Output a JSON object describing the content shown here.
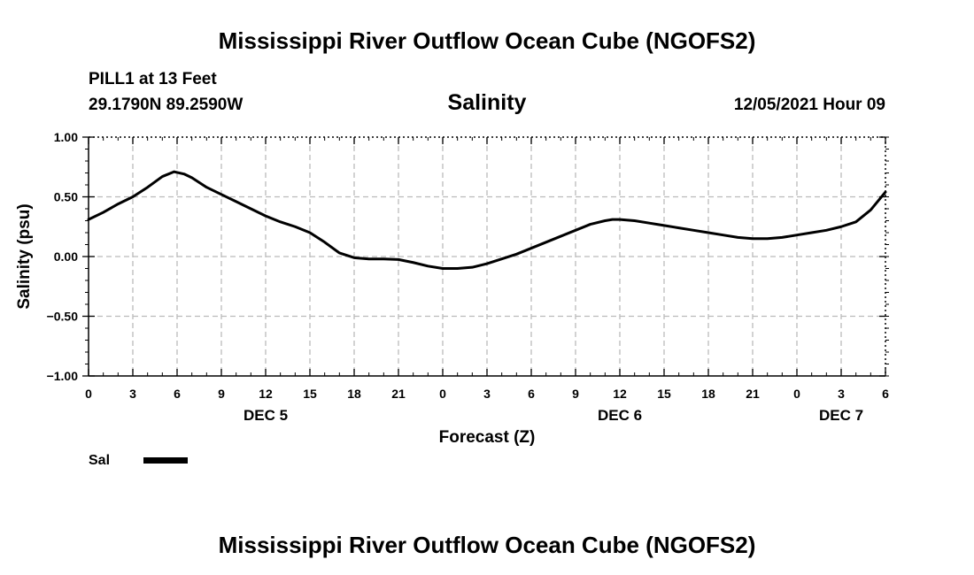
{
  "chart_data": {
    "type": "line",
    "title": "Mississippi River Outflow Ocean Cube (NGOFS2)",
    "footer_title": "Mississippi River Outflow Ocean Cube (NGOFS2)",
    "station": "PILL1 at 13 Feet",
    "location": "29.1790N  89.2590W",
    "subtitle": "Salinity",
    "run_time": "12/05/2021 Hour 09",
    "xlabel": "Forecast (Z)",
    "ylabel": "Salinity (psu)",
    "xlim": [
      0,
      54
    ],
    "ylim": [
      -1.0,
      1.0
    ],
    "x_ticks": [
      0,
      3,
      6,
      9,
      12,
      15,
      18,
      21,
      24,
      27,
      30,
      33,
      36,
      39,
      42,
      45,
      48,
      51,
      54
    ],
    "x_tick_labels": [
      "0",
      "3",
      "6",
      "9",
      "12",
      "15",
      "18",
      "21",
      "0",
      "3",
      "6",
      "9",
      "12",
      "15",
      "18",
      "21",
      "0",
      "3",
      "6"
    ],
    "y_ticks": [
      1.0,
      0.5,
      0.0,
      -0.5,
      -1.0
    ],
    "y_tick_labels": [
      "1.00",
      "0.50",
      "0.00",
      "−0.50",
      "−1.00"
    ],
    "day_labels": [
      {
        "x": 12,
        "text": "DEC 5"
      },
      {
        "x": 36,
        "text": "DEC 6"
      },
      {
        "x": 51,
        "text": "DEC 7"
      }
    ],
    "grid": true,
    "legend_position": "bottom-left",
    "series": [
      {
        "name": "Sal",
        "color": "#000000",
        "x": [
          0,
          1,
          2,
          3,
          4,
          5,
          5.8,
          6.5,
          7,
          8,
          9,
          10,
          11,
          12,
          13,
          14,
          15,
          16,
          17,
          18,
          19,
          20,
          21,
          22,
          23,
          24,
          25,
          26,
          27,
          28,
          29,
          30,
          31,
          32,
          33,
          34,
          35,
          35.5,
          36,
          37,
          38,
          39,
          40,
          41,
          42,
          43,
          44,
          45,
          46,
          47,
          48,
          49,
          50,
          51,
          52,
          53,
          54
        ],
        "values": [
          0.31,
          0.37,
          0.44,
          0.5,
          0.58,
          0.67,
          0.71,
          0.69,
          0.66,
          0.58,
          0.52,
          0.46,
          0.4,
          0.34,
          0.29,
          0.25,
          0.2,
          0.12,
          0.03,
          -0.01,
          -0.02,
          -0.02,
          -0.025,
          -0.05,
          -0.08,
          -0.1,
          -0.1,
          -0.09,
          -0.06,
          -0.02,
          0.02,
          0.07,
          0.12,
          0.17,
          0.22,
          0.27,
          0.3,
          0.31,
          0.31,
          0.3,
          0.28,
          0.26,
          0.24,
          0.22,
          0.2,
          0.18,
          0.16,
          0.15,
          0.15,
          0.16,
          0.18,
          0.2,
          0.22,
          0.25,
          0.29,
          0.39,
          0.54
        ]
      }
    ]
  },
  "colors": {
    "line": "#000000",
    "grid": "#bbbbbb",
    "axis": "#000000",
    "background": "#ffffff"
  }
}
